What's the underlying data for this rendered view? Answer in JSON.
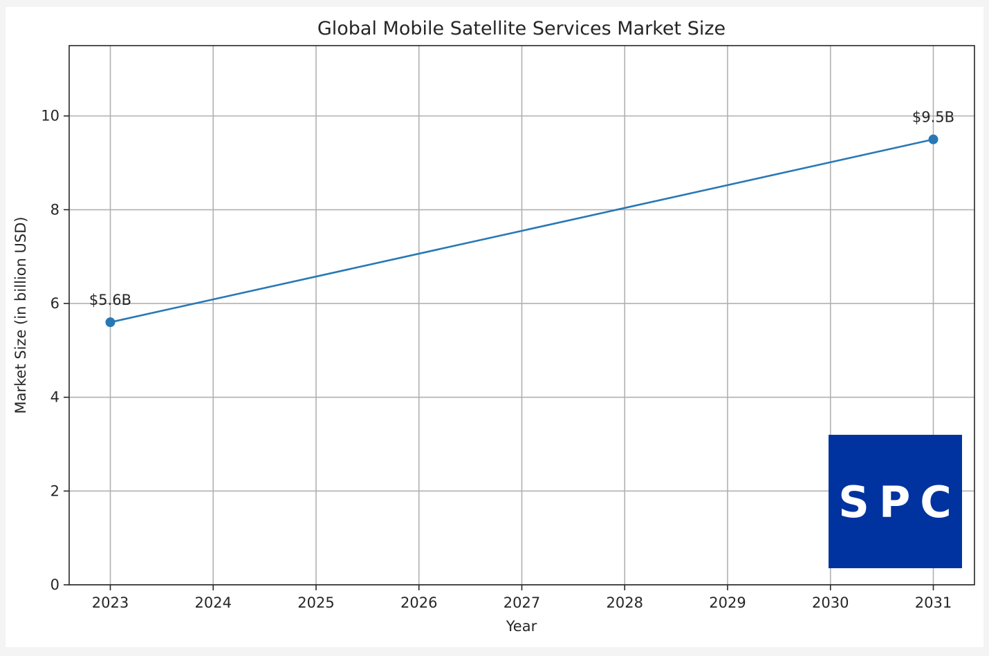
{
  "chart_data": {
    "type": "line",
    "title": "Global Mobile Satellite Services Market Size",
    "xlabel": "Year",
    "ylabel": "Market Size (in billion USD)",
    "x": [
      2023,
      2031
    ],
    "values": [
      5.6,
      9.5
    ],
    "data_labels": [
      "$5.6B",
      "$9.5B"
    ],
    "xticks": [
      "2023",
      "2024",
      "2025",
      "2026",
      "2027",
      "2028",
      "2029",
      "2030",
      "2031"
    ],
    "yticks": [
      "0",
      "2",
      "4",
      "6",
      "8",
      "10"
    ],
    "xlim": [
      2022.6,
      2031.4
    ],
    "ylim": [
      0,
      11.5
    ],
    "grid": true,
    "line_color": "#2878b5"
  },
  "logo": {
    "text": "SPC",
    "background": "#0033a0"
  }
}
